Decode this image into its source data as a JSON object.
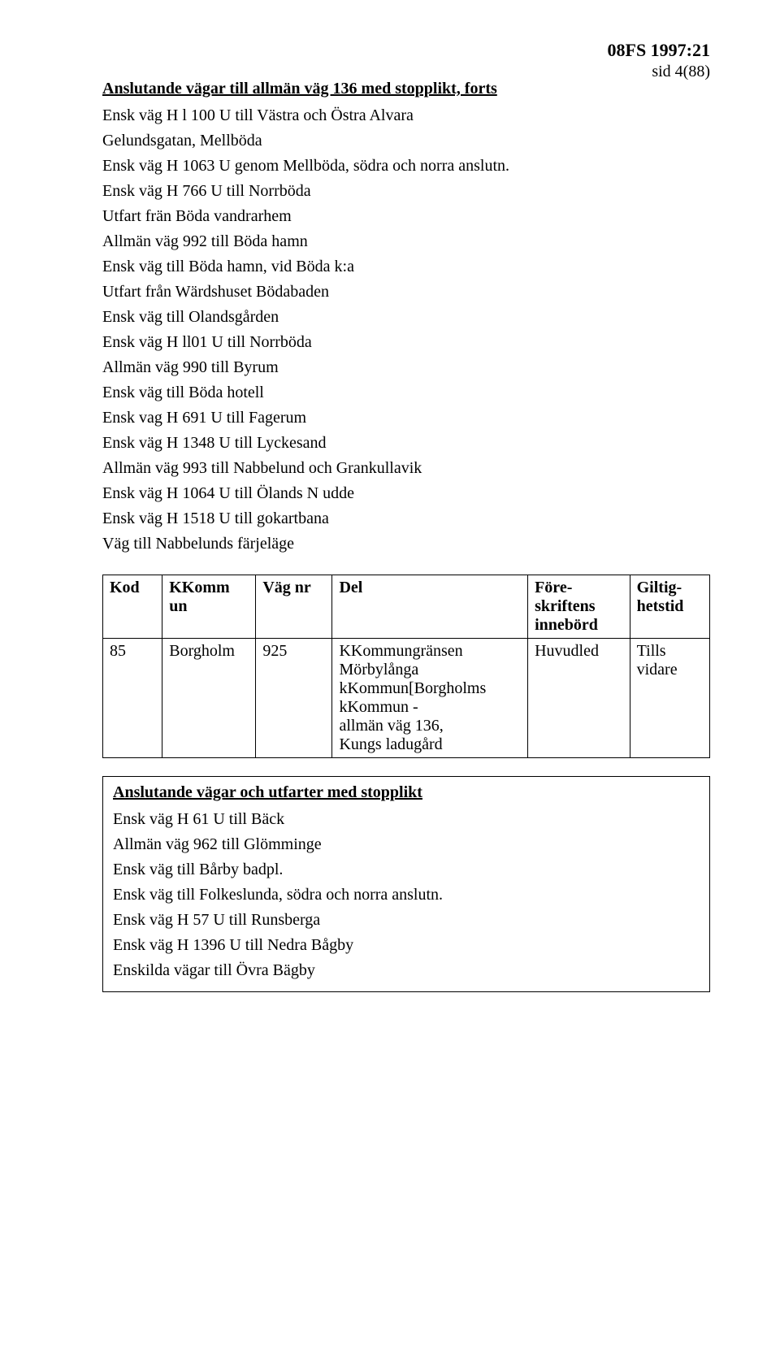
{
  "header": {
    "code": "08FS 1997:21",
    "page": "sid 4(88)"
  },
  "section1": {
    "title": "Anslutande vägar till allmän väg 136 med stopplikt, forts",
    "lines": [
      "Ensk väg H l 100 U till Västra och Östra Alvara",
      "Gelundsgatan, Mellböda",
      "Ensk väg H 1063 U genom Mellböda, södra och norra anslutn.",
      "Ensk väg H 766 U till Norrböda",
      "Utfart frän Böda vandrarhem",
      "Allmän väg 992 till Böda hamn",
      "Ensk väg till Böda hamn, vid Böda k:a",
      "Utfart från Wärdshuset Bödabaden",
      "Ensk väg till Olandsgården",
      "Ensk väg H ll01 U till Norrböda",
      "Allmän väg 990 till Byrum",
      "Ensk väg till Böda hotell",
      "Ensk vag H 691 U till Fagerum",
      "Ensk väg H 1348 U till Lyckesand",
      "Allmän väg 993 till Nabbelund och Grankullavik",
      "Ensk väg H 1064 U till Ölands N udde",
      "Ensk väg H 1518 U till gokartbana",
      "Väg till Nabbelunds färjeläge"
    ]
  },
  "table": {
    "headers": {
      "c1": "Kod",
      "c2": "KKomm\nun",
      "c3": "Väg nr",
      "c4": "Del",
      "c5": "Före-\nskriftens\ninnebörd",
      "c6": "Giltig-\nhetstid"
    },
    "row": {
      "c1": "85",
      "c2": "Borgholm",
      "c3": "925",
      "c4": "KKommungränsen\nMörbylånga\nkKommun[Borgholms\nkKommun -\nallmän väg 136,\nKungs ladugård",
      "c5": "Huvudled",
      "c6": "Tills\nvidare"
    },
    "col_widths": [
      "70px",
      "110px",
      "90px",
      "230px",
      "120px",
      "94px"
    ]
  },
  "section2": {
    "title": "Anslutande vägar och utfarter med stopplikt",
    "lines": [
      "Ensk väg H 61 U till Bäck",
      "Allmän väg 962 till Glömminge",
      "Ensk väg till Bårby badpl.",
      "Ensk väg till Folkeslunda, södra och norra anslutn.",
      "Ensk väg H 57 U till Runsberga",
      "Ensk väg H 1396 U till Nedra Bågby",
      "Enskilda vägar till Övra Bägby"
    ]
  }
}
